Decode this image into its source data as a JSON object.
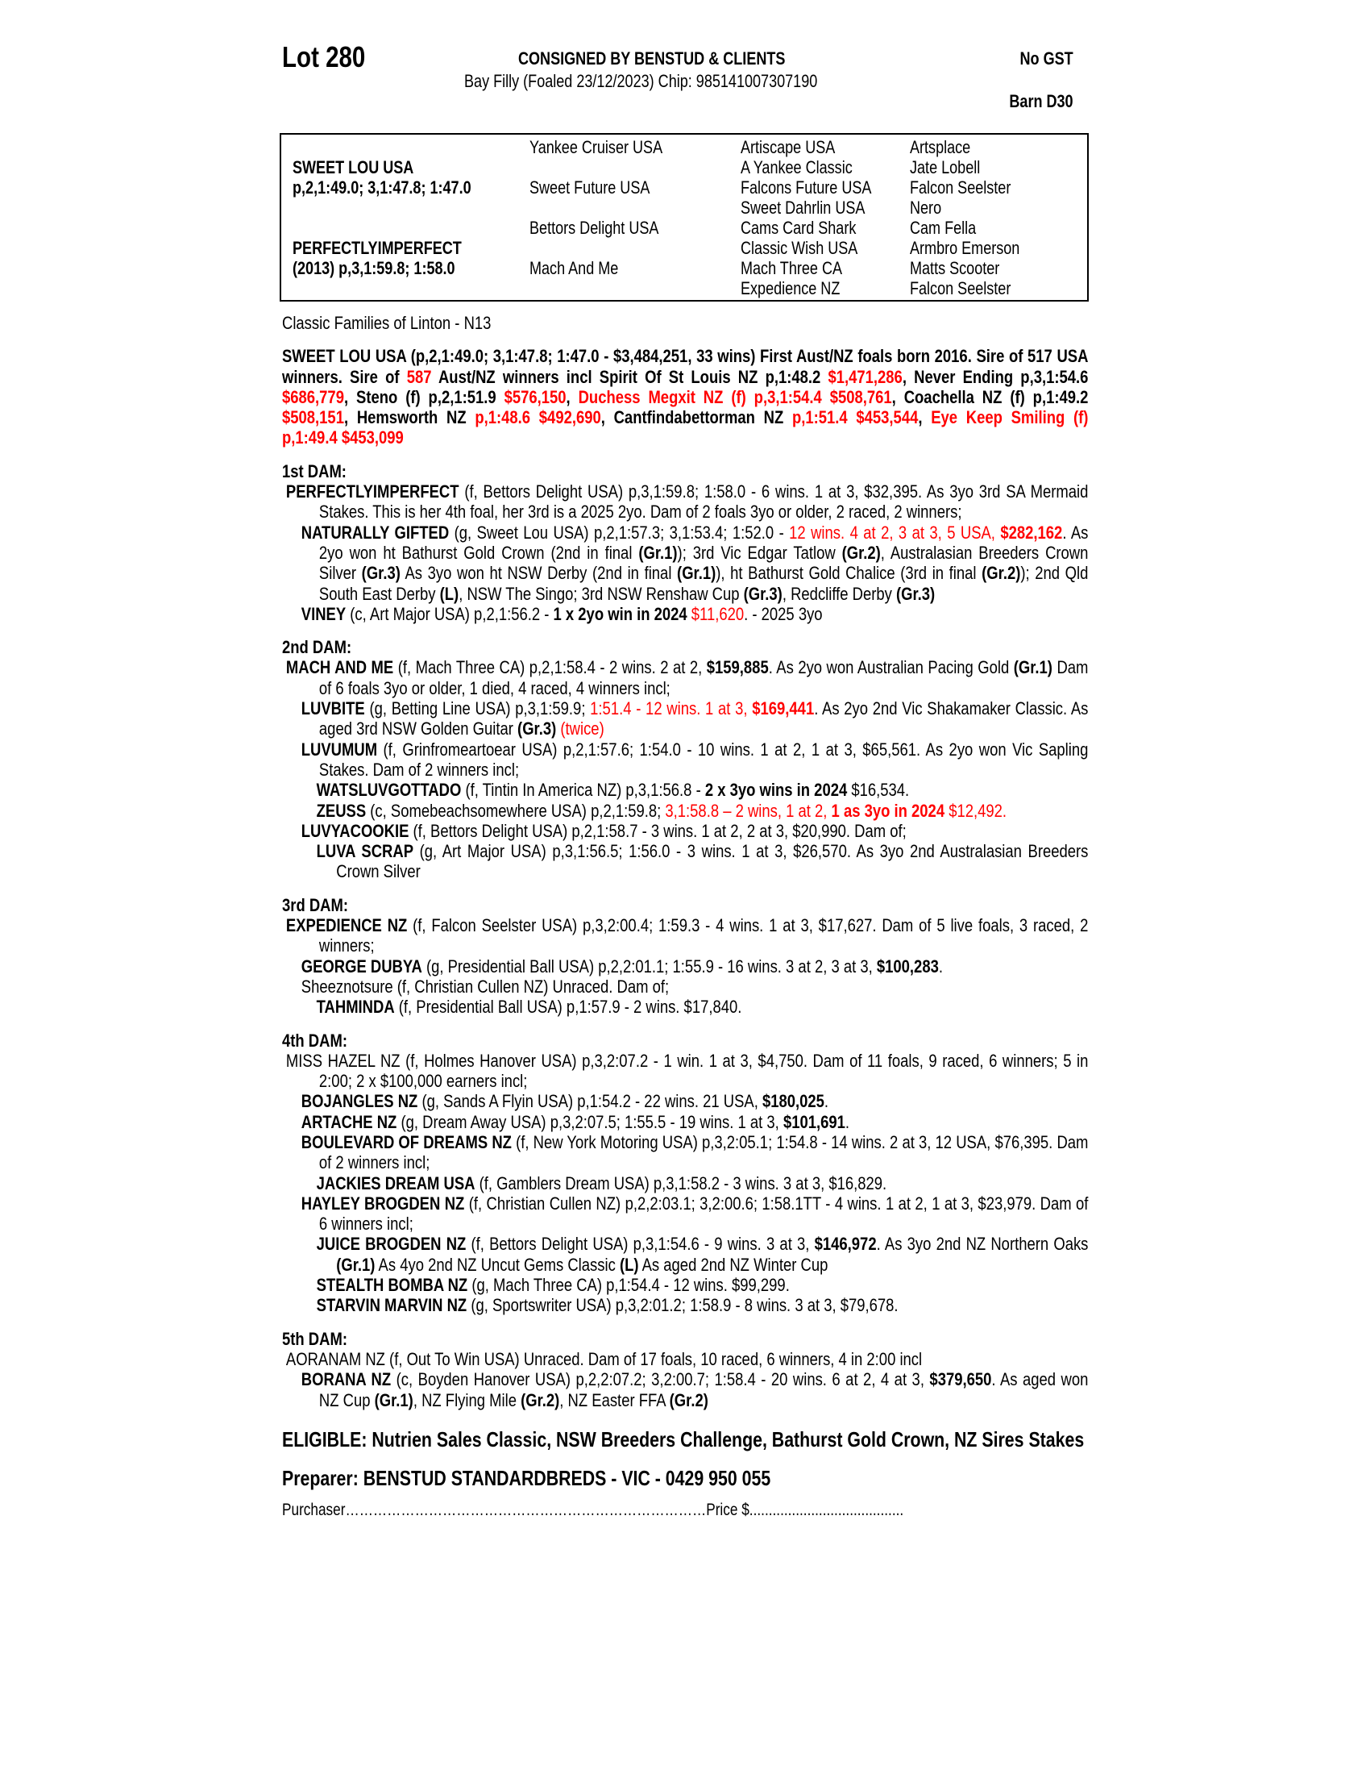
{
  "header": {
    "lot": "Lot 280",
    "consigned": "CONSIGNED BY BENSTUD & CLIENTS",
    "description": "Bay Filly (Foaled 23/12/2023) Chip: 985141007307190",
    "gst": "No GST",
    "barn": "Barn D30"
  },
  "pedigree": {
    "col1": [
      "",
      "SWEET LOU USA",
      "p,2,1:49.0; 3,1:47.8; 1:47.0",
      "",
      "",
      "PERFECTLYIMPERFECT",
      "(2013) p,3,1:59.8; 1:58.0",
      ""
    ],
    "col2": [
      "Yankee Cruiser USA",
      "",
      "Sweet Future USA",
      "",
      "Bettors Delight USA",
      "",
      "Mach And Me",
      ""
    ],
    "col3": [
      "Artiscape USA",
      "A Yankee Classic",
      "Falcons Future USA",
      "Sweet Dahrlin USA",
      "Cams Card Shark",
      "Classic Wish USA",
      "Mach Three CA",
      "Expedience NZ"
    ],
    "col4": [
      "Artsplace",
      "Jate Lobell",
      "Falcon Seelster",
      "Nero",
      "Cam Fella",
      "Armbro Emerson",
      "Matts Scooter",
      "Falcon Seelster"
    ]
  },
  "family": "Classic Families of Linton - N13",
  "colors": {
    "highlight": "#ff0000",
    "text": "#000000"
  },
  "entries": [
    {
      "k": "sire",
      "segs": [
        {
          "t": "SWEET LOU USA (p,2,1:49.0; 3,1:47.8; 1:47.0 - $3,484,251, 33 wins) First Aust/NZ foals born 2016. Sire of 517 USA winners. Sire of ",
          "s": "b"
        },
        {
          "t": "587",
          "s": "br"
        },
        {
          "t": " Aust/NZ winners incl Spirit Of St Louis NZ p,1:48.2 ",
          "s": "b"
        },
        {
          "t": "$1,471,286",
          "s": "br"
        },
        {
          "t": ", Never Ending p,3,1:54.6 ",
          "s": "b"
        },
        {
          "t": "$686,779",
          "s": "br"
        },
        {
          "t": ", Steno (f) p,2,1:51.9 ",
          "s": "b"
        },
        {
          "t": "$576,150",
          "s": "br"
        },
        {
          "t": ", ",
          "s": "b"
        },
        {
          "t": "Duchess Megxit NZ (f) p,3,1:54.4 $508,761",
          "s": "br"
        },
        {
          "t": ", Coachella NZ (f) p,1:49.2 ",
          "s": "b"
        },
        {
          "t": "$508,151",
          "s": "br"
        },
        {
          "t": ", Hemsworth NZ ",
          "s": "b"
        },
        {
          "t": "p,1:48.6 $492,690",
          "s": "br"
        },
        {
          "t": ", Cantfindabettorman NZ ",
          "s": "b"
        },
        {
          "t": "p,1:51.4 $453,544",
          "s": "br"
        },
        {
          "t": ", ",
          "s": "b"
        },
        {
          "t": "Eye Keep Smiling (f) p,1:49.4 $453,099",
          "s": "br"
        }
      ]
    },
    {
      "k": "h",
      "segs": [
        {
          "t": "1st DAM:",
          "s": "b"
        }
      ]
    },
    {
      "k": "l0",
      "segs": [
        {
          "t": "PERFECTLYIMPERFECT",
          "s": "b"
        },
        {
          "t": " (f, Bettors Delight USA) p,3,1:59.8; 1:58.0 - 6 wins. 1 at 3, $32,395. As 3yo 3rd SA Mermaid Stakes. This is her 4th foal, her 3rd is a 2025 2yo. Dam of 2 foals 3yo or older, 2 raced, 2 winners;",
          "s": ""
        }
      ]
    },
    {
      "k": "l1",
      "segs": [
        {
          "t": "NATURALLY GIFTED",
          "s": "b"
        },
        {
          "t": " (g, Sweet Lou USA) p,2,1:57.3; 3,1:53.4; 1:52.0 - ",
          "s": ""
        },
        {
          "t": "12 wins. 4 at 2, 3 at 3, 5 USA, ",
          "s": "r"
        },
        {
          "t": "$282,162",
          "s": "br"
        },
        {
          "t": ". As 2yo won ht Bathurst Gold Crown (2nd in final ",
          "s": ""
        },
        {
          "t": "(Gr.1)",
          "s": "b"
        },
        {
          "t": "); 3rd Vic Edgar Tatlow ",
          "s": ""
        },
        {
          "t": "(Gr.2)",
          "s": "b"
        },
        {
          "t": ", Australasian Breeders Crown Silver ",
          "s": ""
        },
        {
          "t": "(Gr.3)",
          "s": "b"
        },
        {
          "t": " As 3yo won ht NSW Derby (2nd in final ",
          "s": ""
        },
        {
          "t": "(Gr.1)",
          "s": "b"
        },
        {
          "t": "), ht Bathurst Gold Chalice (3rd in final ",
          "s": ""
        },
        {
          "t": "(Gr.2)",
          "s": "b"
        },
        {
          "t": "); 2nd Qld South East Derby ",
          "s": ""
        },
        {
          "t": "(L)",
          "s": "b"
        },
        {
          "t": ", NSW The Singo; 3rd NSW Renshaw Cup ",
          "s": ""
        },
        {
          "t": "(Gr.3)",
          "s": "b"
        },
        {
          "t": ", Redcliffe Derby ",
          "s": ""
        },
        {
          "t": "(Gr.3)",
          "s": "b"
        }
      ]
    },
    {
      "k": "l1",
      "segs": [
        {
          "t": "VINEY",
          "s": "b"
        },
        {
          "t": " (c, Art Major USA) p,2,1:56.2 - ",
          "s": ""
        },
        {
          "t": "1 x 2yo win in 2024",
          "s": "b"
        },
        {
          "t": " ",
          "s": ""
        },
        {
          "t": "$11,620",
          "s": "r"
        },
        {
          "t": ". - 2025 3yo",
          "s": ""
        }
      ]
    },
    {
      "k": "h",
      "segs": [
        {
          "t": "2nd DAM:",
          "s": "b"
        }
      ]
    },
    {
      "k": "l0",
      "segs": [
        {
          "t": "MACH AND ME",
          "s": "b"
        },
        {
          "t": " (f, Mach Three CA) p,2,1:58.4 - 2 wins. 2 at 2, ",
          "s": ""
        },
        {
          "t": "$159,885",
          "s": "b"
        },
        {
          "t": ". As 2yo won Australian Pacing Gold ",
          "s": ""
        },
        {
          "t": "(Gr.1)",
          "s": "b"
        },
        {
          "t": " Dam of 6 foals 3yo or older, 1 died, 4 raced, 4 winners incl;",
          "s": ""
        }
      ]
    },
    {
      "k": "l1",
      "segs": [
        {
          "t": "LUVBITE",
          "s": "b"
        },
        {
          "t": " (g, Betting Line USA) p,3,1:59.9; ",
          "s": ""
        },
        {
          "t": "1:51.4 - 12 wins. 1 at 3, ",
          "s": "r"
        },
        {
          "t": "$169,441",
          "s": "br"
        },
        {
          "t": ". As 2yo 2nd Vic Shakamaker Classic. As aged 3rd NSW Golden Guitar ",
          "s": ""
        },
        {
          "t": "(Gr.3)",
          "s": "b"
        },
        {
          "t": " ",
          "s": ""
        },
        {
          "t": "(twice)",
          "s": "r"
        }
      ]
    },
    {
      "k": "l1",
      "segs": [
        {
          "t": "LUVUMUM",
          "s": "b"
        },
        {
          "t": " (f, Grinfromeartoear USA) p,2,1:57.6; 1:54.0 - 10 wins. 1 at 2, 1 at 3, $65,561. As 2yo won Vic Sapling Stakes. Dam of 2 winners incl;",
          "s": ""
        }
      ]
    },
    {
      "k": "l2",
      "segs": [
        {
          "t": "WATSLUVGOTTADO",
          "s": "b"
        },
        {
          "t": " (f, Tintin In America NZ) p,3,1:56.8 - ",
          "s": ""
        },
        {
          "t": "2 x 3yo wins in 2024",
          "s": "b"
        },
        {
          "t": " $16,534.",
          "s": ""
        }
      ]
    },
    {
      "k": "l2",
      "segs": [
        {
          "t": "ZEUSS",
          "s": "b"
        },
        {
          "t": " (c, Somebeachsomewhere USA) p,2,1:59.8; ",
          "s": ""
        },
        {
          "t": "3,1:58.8 – 2 wins, 1 at 2, ",
          "s": "r"
        },
        {
          "t": "1 as 3yo in 2024",
          "s": "br"
        },
        {
          "t": " $12,492.",
          "s": "r"
        }
      ]
    },
    {
      "k": "l1",
      "segs": [
        {
          "t": "LUVYACOOKIE",
          "s": "b"
        },
        {
          "t": " (f, Bettors Delight USA) p,2,1:58.7 - 3 wins. 1 at 2, 2 at 3, $20,990. Dam of;",
          "s": ""
        }
      ]
    },
    {
      "k": "l2",
      "segs": [
        {
          "t": "LUVA SCRAP",
          "s": "b"
        },
        {
          "t": " (g, Art Major USA) p,3,1:56.5; 1:56.0 - 3 wins. 1 at 3, $26,570. As 3yo 2nd Australasian Breeders Crown Silver",
          "s": ""
        }
      ]
    },
    {
      "k": "h",
      "segs": [
        {
          "t": "3rd DAM:",
          "s": "b"
        }
      ]
    },
    {
      "k": "l0",
      "segs": [
        {
          "t": "EXPEDIENCE NZ",
          "s": "b"
        },
        {
          "t": " (f, Falcon Seelster USA) p,3,2:00.4; 1:59.3 - 4 wins. 1 at 3, $17,627. Dam of 5 live foals, 3 raced, 2 winners;",
          "s": ""
        }
      ]
    },
    {
      "k": "l1",
      "segs": [
        {
          "t": "GEORGE DUBYA",
          "s": "b"
        },
        {
          "t": " (g, Presidential Ball USA) p,2,2:01.1; 1:55.9 - 16 wins. 3 at 2, 3 at 3, ",
          "s": ""
        },
        {
          "t": "$100,283",
          "s": "b"
        },
        {
          "t": ".",
          "s": ""
        }
      ]
    },
    {
      "k": "l1",
      "segs": [
        {
          "t": "Sheeznotsure (f, Christian Cullen NZ) Unraced. Dam of;",
          "s": ""
        }
      ]
    },
    {
      "k": "l2",
      "segs": [
        {
          "t": "TAHMINDA",
          "s": "b"
        },
        {
          "t": " (f, Presidential Ball USA) p,1:57.9 - 2 wins. $17,840.",
          "s": ""
        }
      ]
    },
    {
      "k": "h",
      "segs": [
        {
          "t": "4th DAM:",
          "s": "b"
        }
      ]
    },
    {
      "k": "l0",
      "segs": [
        {
          "t": "MISS HAZEL NZ (f, Holmes Hanover USA) p,3,2:07.2 - 1 win. 1 at 3, $4,750. Dam of 11 foals, 9 raced, 6 winners; 5 in 2:00; 2 x $100,000 earners incl;",
          "s": ""
        }
      ]
    },
    {
      "k": "l1",
      "segs": [
        {
          "t": "BOJANGLES NZ",
          "s": "b"
        },
        {
          "t": " (g, Sands A Flyin USA) p,1:54.2 - 22 wins. 21 USA, ",
          "s": ""
        },
        {
          "t": "$180,025",
          "s": "b"
        },
        {
          "t": ".",
          "s": ""
        }
      ]
    },
    {
      "k": "l1",
      "segs": [
        {
          "t": "ARTACHE NZ",
          "s": "b"
        },
        {
          "t": " (g, Dream Away USA) p,3,2:07.5; 1:55.5 - 19 wins. 1 at 3, ",
          "s": ""
        },
        {
          "t": "$101,691",
          "s": "b"
        },
        {
          "t": ".",
          "s": ""
        }
      ]
    },
    {
      "k": "l1",
      "segs": [
        {
          "t": "BOULEVARD OF DREAMS NZ",
          "s": "b"
        },
        {
          "t": " (f, New York Motoring USA) p,3,2:05.1; 1:54.8 - 14 wins. 2 at 3, 12 USA, $76,395. Dam of 2 winners incl;",
          "s": ""
        }
      ]
    },
    {
      "k": "l2",
      "segs": [
        {
          "t": "JACKIES DREAM USA",
          "s": "b"
        },
        {
          "t": " (f, Gamblers Dream USA) p,3,1:58.2 - 3 wins. 3 at 3, $16,829.",
          "s": ""
        }
      ]
    },
    {
      "k": "l1",
      "segs": [
        {
          "t": "HAYLEY BROGDEN NZ",
          "s": "b"
        },
        {
          "t": " (f, Christian Cullen NZ) p,2,2:03.1; 3,2:00.6; 1:58.1TT - 4 wins. 1 at 2, 1 at 3, $23,979. Dam of 6 winners incl;",
          "s": ""
        }
      ]
    },
    {
      "k": "l2",
      "segs": [
        {
          "t": "JUICE BROGDEN NZ",
          "s": "b"
        },
        {
          "t": " (f, Bettors Delight USA) p,3,1:54.6 - 9 wins. 3 at 3, ",
          "s": ""
        },
        {
          "t": "$146,972",
          "s": "b"
        },
        {
          "t": ". As 3yo 2nd NZ Northern Oaks ",
          "s": ""
        },
        {
          "t": "(Gr.1)",
          "s": "b"
        },
        {
          "t": " As 4yo 2nd NZ Uncut Gems Classic ",
          "s": ""
        },
        {
          "t": "(L)",
          "s": "b"
        },
        {
          "t": " As aged 2nd NZ Winter Cup",
          "s": ""
        }
      ]
    },
    {
      "k": "l2",
      "segs": [
        {
          "t": "STEALTH BOMBA NZ",
          "s": "b"
        },
        {
          "t": " (g, Mach Three CA) p,1:54.4 - 12 wins. $99,299.",
          "s": ""
        }
      ]
    },
    {
      "k": "l2",
      "segs": [
        {
          "t": "STARVIN MARVIN NZ",
          "s": "b"
        },
        {
          "t": " (g, Sportswriter USA) p,3,2:01.2; 1:58.9 - 8 wins. 3 at 3, $79,678.",
          "s": ""
        }
      ]
    },
    {
      "k": "h",
      "segs": [
        {
          "t": "5th DAM:",
          "s": "b"
        }
      ]
    },
    {
      "k": "l0",
      "segs": [
        {
          "t": "AORANAM NZ (f, Out To Win USA) Unraced. Dam of 17 foals, 10 raced, 6 winners, 4 in 2:00 incl",
          "s": ""
        }
      ]
    },
    {
      "k": "l1",
      "segs": [
        {
          "t": "BORANA NZ",
          "s": "b"
        },
        {
          "t": " (c, Boyden Hanover USA) p,2,2:07.2; 3,2:00.7; 1:58.4 - 20 wins. 6 at 2, 4 at 3, ",
          "s": ""
        },
        {
          "t": "$379,650",
          "s": "b"
        },
        {
          "t": ". As aged won NZ Cup ",
          "s": ""
        },
        {
          "t": "(Gr.1)",
          "s": "b"
        },
        {
          "t": ", NZ Flying Mile ",
          "s": ""
        },
        {
          "t": "(Gr.2)",
          "s": "b"
        },
        {
          "t": ", NZ Easter FFA ",
          "s": ""
        },
        {
          "t": "(Gr.2)",
          "s": "b"
        }
      ]
    }
  ],
  "footer": {
    "eligible": "ELIGIBLE: Nutrien Sales Classic, NSW Breeders Challenge, Bathurst Gold Crown, NZ Sires Stakes",
    "preparer": "Preparer: BENSTUD STANDARDBREDS - VIC - 0429 950 055",
    "purchaser_label": "Purchaser",
    "purchaser_dots": "……………………………………………………………………",
    "price_label": "Price $",
    "price_dots": "........................................"
  }
}
